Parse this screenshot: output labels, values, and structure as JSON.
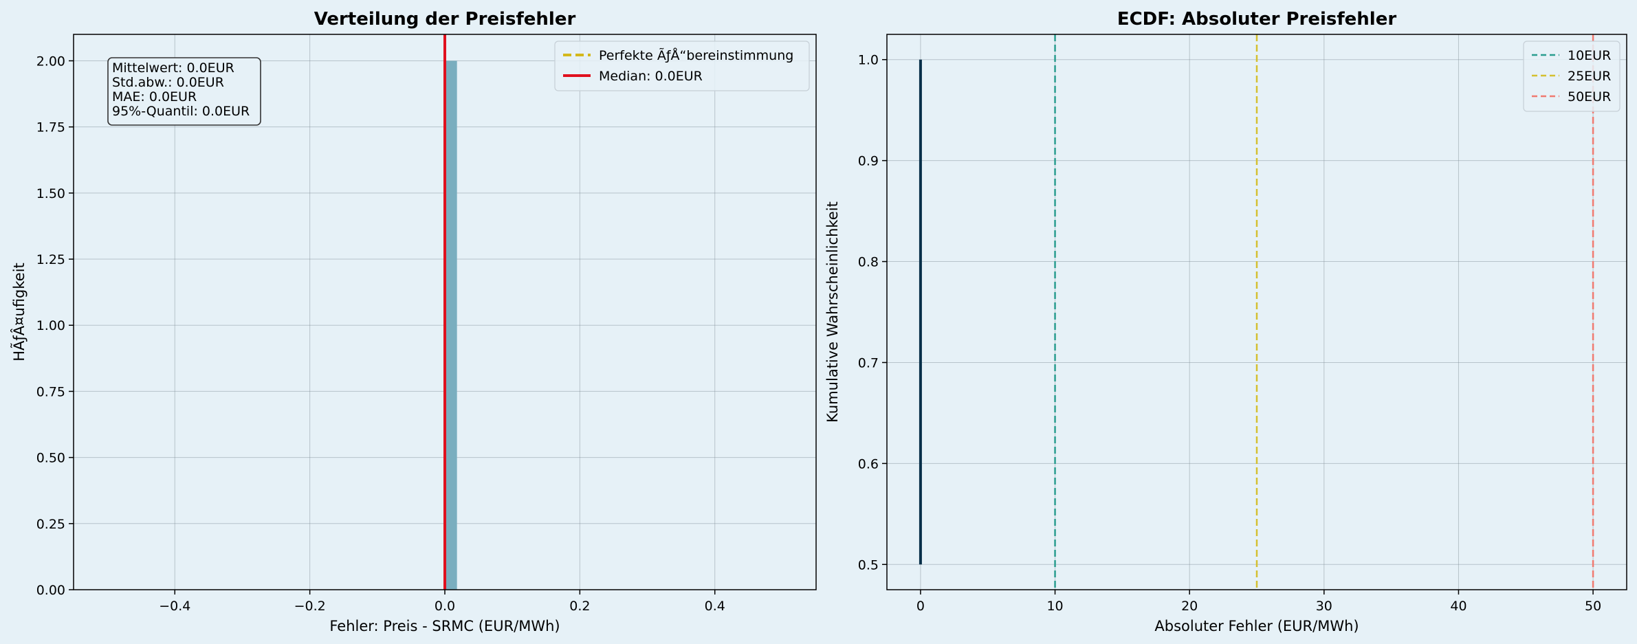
{
  "chart_data": [
    {
      "type": "bar",
      "title": "Verteilung der Preisfehler",
      "xlabel": "Fehler: Preis - SRMC (EUR/MWh)",
      "ylabel": "HÃƒÂ¤ufigkeit",
      "xlim": [
        -0.55,
        0.55
      ],
      "ylim": [
        0,
        2.1
      ],
      "xticks": [
        -0.4,
        -0.2,
        0.0,
        0.2,
        0.4
      ],
      "xtick_labels": [
        "−0.4",
        "−0.2",
        "0.0",
        "0.2",
        "0.4"
      ],
      "yticks": [
        0,
        0.25,
        0.5,
        0.75,
        1.0,
        1.25,
        1.5,
        1.75,
        2.0
      ],
      "ytick_labels": [
        "0.00",
        "0.25",
        "0.50",
        "0.75",
        "1.00",
        "1.25",
        "1.50",
        "1.75",
        "2.00"
      ],
      "grid": true,
      "bars": [
        {
          "x0": 0.0,
          "x1": 0.018,
          "value": 2.0,
          "color": "#7aaebf"
        }
      ],
      "lines": [
        {
          "name": "Perfekte ÃƒÅ“bereinstimmung",
          "x": 0.0,
          "color": "#d4b81c",
          "style": "dashed"
        },
        {
          "name": "Median: 0.0EUR",
          "x": 0.0,
          "color": "#e0101e",
          "style": "solid"
        }
      ],
      "legend_position": "top-right",
      "annotation": [
        "Mittelwert: 0.0EUR",
        "Std.abw.: 0.0EUR",
        "MAE: 0.0EUR",
        "95%-Quantil: 0.0EUR"
      ]
    },
    {
      "type": "line",
      "title": "ECDF: Absoluter Preisfehler",
      "xlabel": "Absoluter Fehler (EUR/MWh)",
      "ylabel": "Kumulative Wahrscheinlichkeit",
      "xlim": [
        -2.5,
        52.5
      ],
      "ylim": [
        0.475,
        1.025
      ],
      "xticks": [
        0,
        10,
        20,
        30,
        40,
        50
      ],
      "xtick_labels": [
        "0",
        "10",
        "20",
        "30",
        "40",
        "50"
      ],
      "yticks": [
        0.5,
        0.6,
        0.7,
        0.8,
        0.9,
        1.0
      ],
      "ytick_labels": [
        "0.5",
        "0.6",
        "0.7",
        "0.8",
        "0.9",
        "1.0"
      ],
      "grid": true,
      "series": [
        {
          "x": [
            0,
            0
          ],
          "y": [
            0.5,
            1.0
          ],
          "color": "#08304a"
        }
      ],
      "lines": [
        {
          "name": "10EUR",
          "x": 10,
          "color": "#2a9d8f",
          "style": "dashed"
        },
        {
          "name": "25EUR",
          "x": 25,
          "color": "#d4c030",
          "style": "dashed"
        },
        {
          "name": "50EUR",
          "x": 50,
          "color": "#f07a70",
          "style": "dashed"
        }
      ],
      "legend_position": "top-right"
    }
  ]
}
